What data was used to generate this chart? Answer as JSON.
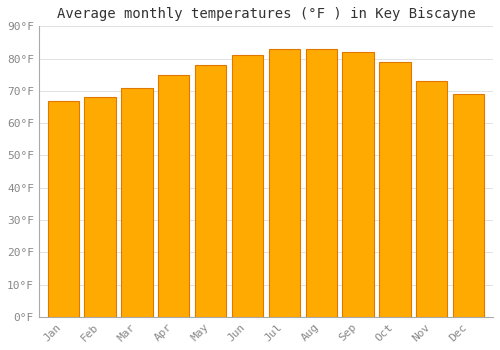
{
  "title": "Average monthly temperatures (°F ) in Key Biscayne",
  "months": [
    "Jan",
    "Feb",
    "Mar",
    "Apr",
    "May",
    "Jun",
    "Jul",
    "Aug",
    "Sep",
    "Oct",
    "Nov",
    "Dec"
  ],
  "values": [
    67,
    68,
    71,
    75,
    78,
    81,
    83,
    83,
    82,
    79,
    73,
    69
  ],
  "bar_color": "#FFAA00",
  "bar_edge_color": "#E07800",
  "background_color": "#FFFFFF",
  "ylim": [
    0,
    90
  ],
  "yticks": [
    0,
    10,
    20,
    30,
    40,
    50,
    60,
    70,
    80,
    90
  ],
  "ytick_labels": [
    "0°F",
    "10°F",
    "20°F",
    "30°F",
    "40°F",
    "50°F",
    "60°F",
    "70°F",
    "80°F",
    "90°F"
  ],
  "title_fontsize": 10,
  "tick_fontsize": 8,
  "grid_color": "#DDDDDD",
  "bar_width": 0.85
}
